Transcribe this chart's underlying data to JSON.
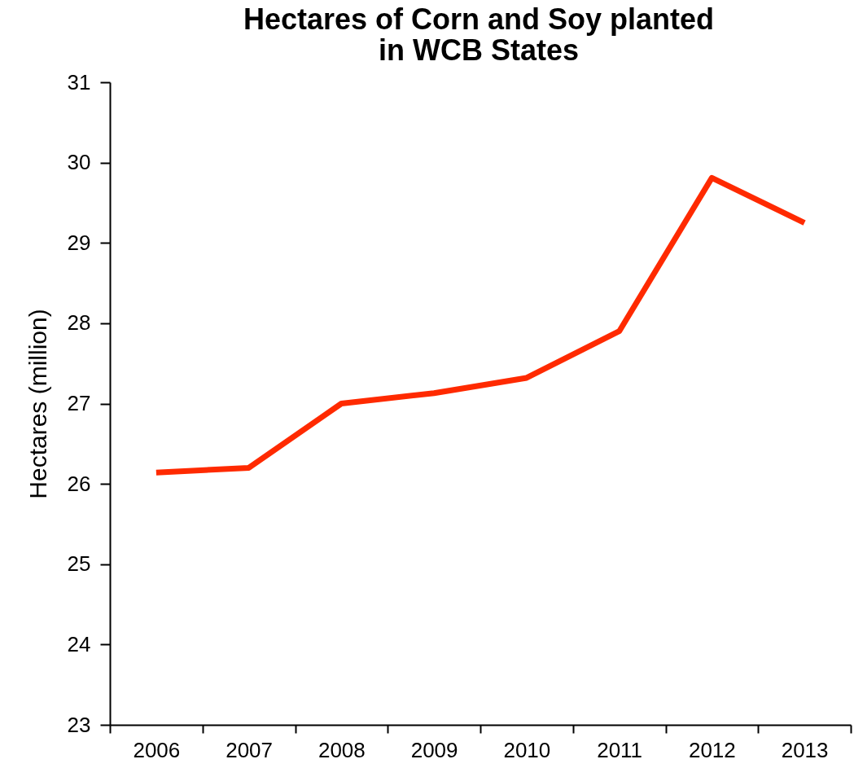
{
  "chart_data": {
    "type": "line",
    "title": "Hectares of Corn and Soy planted\nin WCB States",
    "ylabel": "Hectares (million)",
    "categories": [
      "2006",
      "2007",
      "2008",
      "2009",
      "2010",
      "2011",
      "2012",
      "2013"
    ],
    "series": [
      {
        "color": "#ff2a00",
        "values": [
          26.14,
          26.2,
          27.0,
          27.13,
          27.32,
          27.9,
          29.81,
          29.25
        ]
      }
    ],
    "ylim": [
      23,
      31
    ],
    "yticks": [
      23,
      24,
      25,
      26,
      27,
      28,
      29,
      30,
      31
    ],
    "grid": false,
    "marker": "none",
    "line_style": "solid"
  }
}
